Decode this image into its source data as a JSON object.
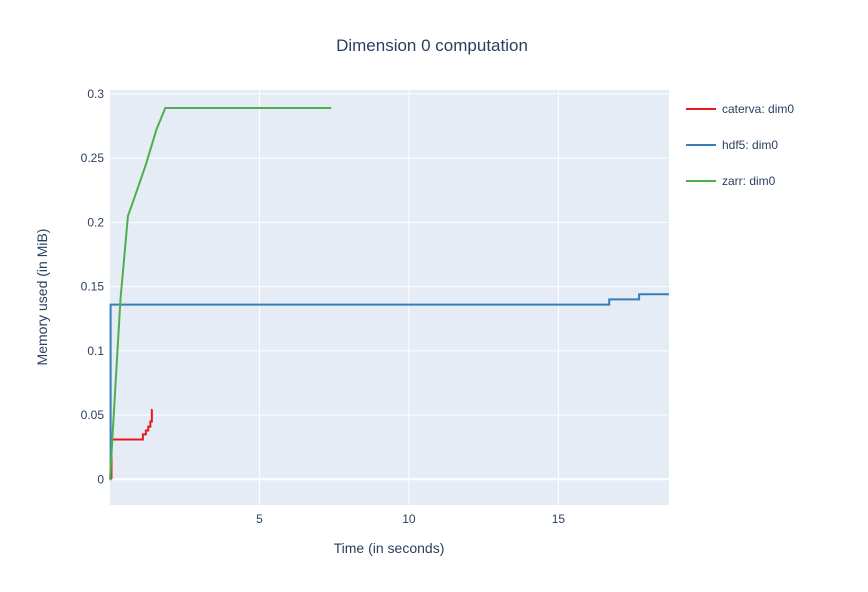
{
  "chart_data": {
    "type": "line",
    "title": "Dimension 0 computation",
    "xlabel": "Time (in seconds)",
    "ylabel": "Memory used (in MiB)",
    "xlim": [
      0,
      18.7
    ],
    "ylim": [
      -0.02,
      0.303
    ],
    "x_ticks": [
      5,
      10,
      15
    ],
    "x_tick_labels": [
      "5",
      "10",
      "15"
    ],
    "y_ticks": [
      0,
      0.05,
      0.1,
      0.15,
      0.2,
      0.25,
      0.3
    ],
    "y_tick_labels": [
      "0",
      "0.05",
      "0.1",
      "0.15",
      "0.2",
      "0.25",
      "0.3"
    ],
    "grid": true,
    "legend_position": "right",
    "series": [
      {
        "name": "caterva: dim0",
        "color": "#e41a1c",
        "shape": "hv",
        "x": [
          0.02,
          0.05,
          1.0,
          1.1,
          1.2,
          1.28,
          1.35,
          1.4,
          1.42
        ],
        "y": [
          0.001,
          0.031,
          0.031,
          0.035,
          0.038,
          0.041,
          0.045,
          0.054,
          0.054
        ]
      },
      {
        "name": "hdf5: dim0",
        "color": "#377eb8",
        "shape": "hv",
        "x": [
          0.0,
          0.02,
          16.7,
          17.7,
          18.7
        ],
        "y": [
          0.0,
          0.136,
          0.14,
          0.144,
          0.144
        ]
      },
      {
        "name": "zarr: dim0",
        "color": "#4daf4a",
        "shape": "linear",
        "x": [
          0.0,
          0.35,
          0.6,
          0.8,
          1.2,
          1.55,
          1.85,
          7.4
        ],
        "y": [
          0.0,
          0.14,
          0.205,
          0.218,
          0.245,
          0.272,
          0.289,
          0.289
        ]
      }
    ]
  }
}
